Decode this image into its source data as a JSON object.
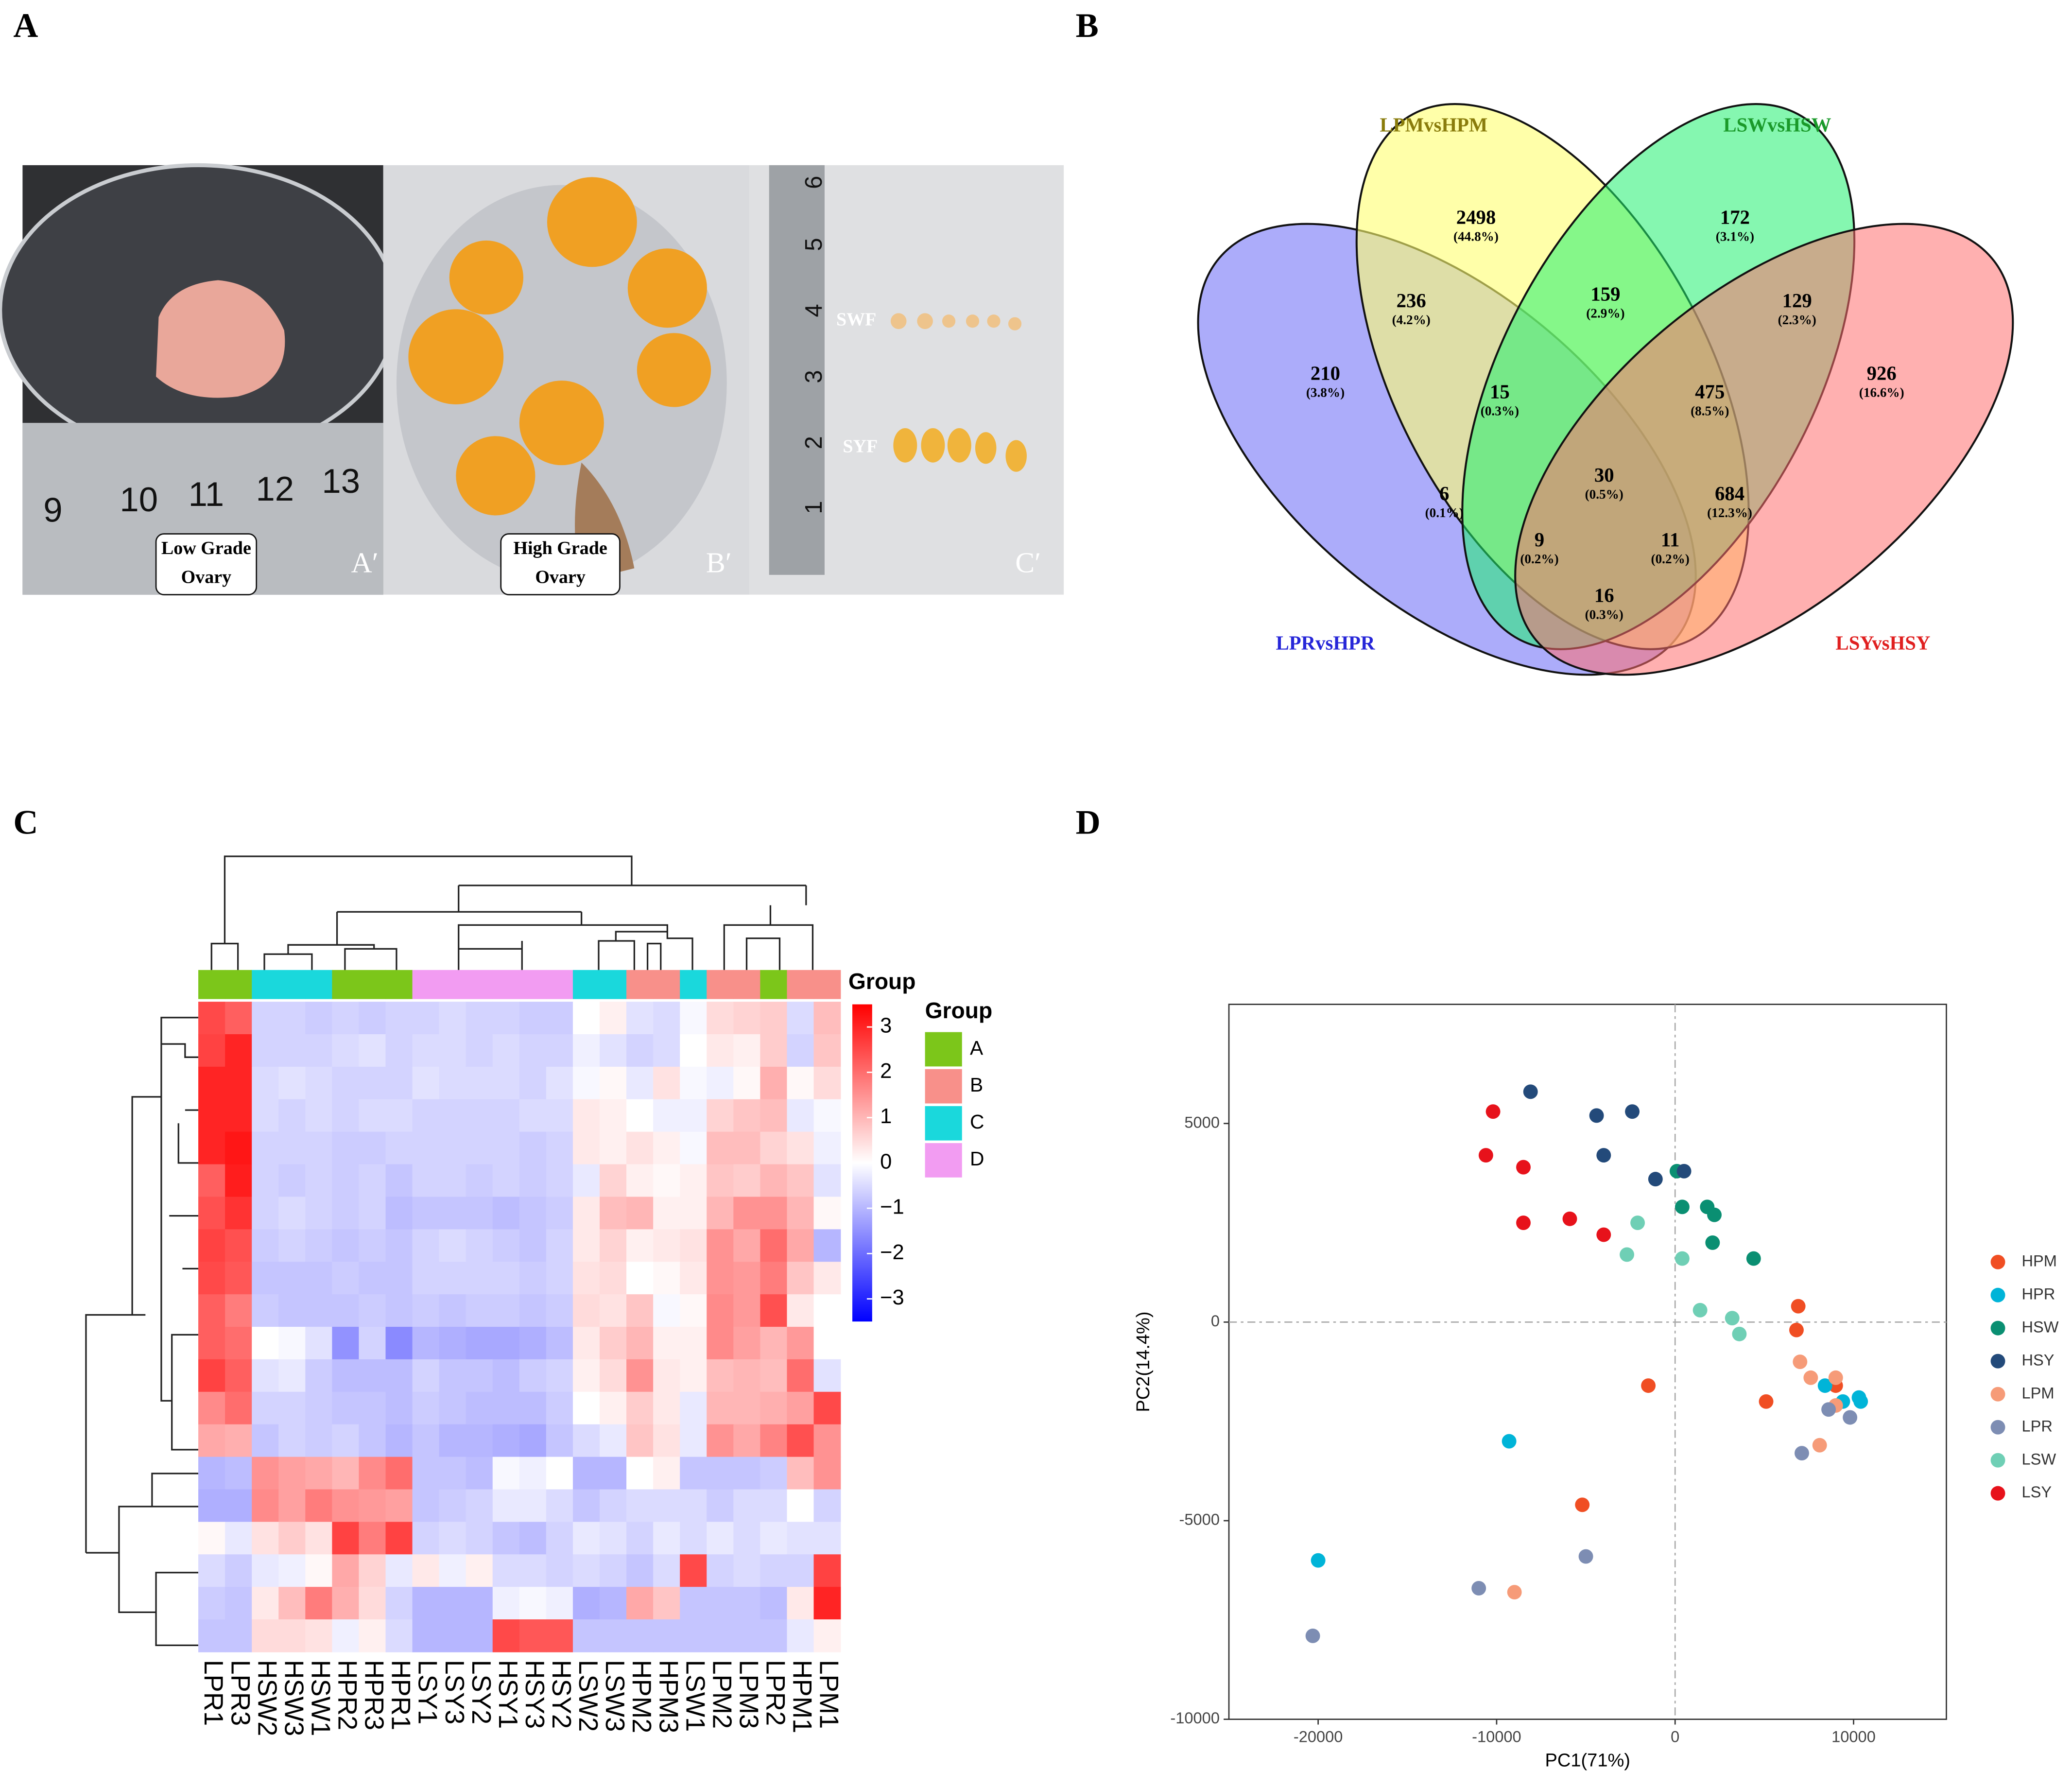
{
  "panel_labels": [
    "A",
    "B",
    "C",
    "D"
  ],
  "photos": {
    "ruler_numbers": [
      "9",
      "10",
      "11",
      "12",
      "13"
    ],
    "vertical_ruler": [
      "1",
      "2",
      "3",
      "4",
      "5",
      "6"
    ],
    "label_low": [
      "Low Grade",
      "Ovary"
    ],
    "label_high": [
      "High Grade",
      "Ovary"
    ],
    "tags": [
      "A′",
      "B′",
      "C′"
    ],
    "follicles": [
      "SWF",
      "SYF"
    ]
  },
  "chart_data": [
    {
      "type": "venn",
      "sets": [
        {
          "name": "LPMvsHPM",
          "color": "#8a7c0c"
        },
        {
          "name": "LSWvsHSW",
          "color": "#1a9a2a"
        },
        {
          "name": "LPRvsHPR",
          "color": "#2626d8"
        },
        {
          "name": "LSYvsHSY",
          "color": "#e02020"
        }
      ],
      "values": [
        2498,
        172,
        236,
        159,
        129,
        210,
        15,
        475,
        926,
        6,
        30,
        684,
        9,
        11,
        16
      ],
      "percent_labels": [
        "(44.8%)",
        "(3.1%)",
        "(4.2%)",
        "(2.9%)",
        "(2.3%)",
        "(3.8%)",
        "(0.3%)",
        "(8.5%)",
        "(16.6%)",
        "(0.1%)",
        "(0.5%)",
        "(12.3%)",
        "(0.2%)",
        "(0.2%)",
        "(0.3%)"
      ]
    },
    {
      "type": "heatmap",
      "columns": [
        "LPR1",
        "LPR3",
        "HSW2",
        "HSW3",
        "HSW1",
        "HPR2",
        "HPR3",
        "HPR1",
        "LSY1",
        "LSY3",
        "LSY2",
        "HSY1",
        "HSY3",
        "HSY2",
        "LSW2",
        "LSW3",
        "HPM2",
        "HPM3",
        "LSW1",
        "LPM2",
        "LPM3",
        "LPR2",
        "HPM1",
        "LPM1"
      ],
      "column_groups": [
        "A",
        "A",
        "C",
        "C",
        "C",
        "A",
        "A",
        "A",
        "D",
        "D",
        "D",
        "D",
        "D",
        "D",
        "C",
        "C",
        "B",
        "B",
        "C",
        "B",
        "B",
        "A",
        "B",
        "B"
      ],
      "colorbar_title": "Group",
      "legend_title": "Group",
      "group_names": [
        "A",
        "B",
        "C",
        "D"
      ],
      "group_colors": [
        "#7cc61a",
        "#f8908a",
        "#1ad8dc",
        "#f29cf2"
      ],
      "colors": [
        "#0000ff",
        "#ffffff",
        "#ff0000"
      ],
      "zlim": [
        -3.5,
        3.5
      ],
      "zticks": [
        3,
        2,
        1,
        0,
        {
          "value": -1,
          "label": "−1"
        },
        {
          "value": -2,
          "label": "−2"
        },
        {
          "value": -3,
          "label": "−3"
        }
      ],
      "values": [
        [
          2.5,
          2.2,
          -0.6,
          -0.6,
          -0.7,
          -0.6,
          -0.7,
          -0.6,
          -0.6,
          -0.5,
          -0.6,
          -0.6,
          -0.7,
          -0.7,
          0,
          0.2,
          -0.4,
          -0.5,
          -0.1,
          0.5,
          0.6,
          0.7,
          -0.5,
          0.9
        ],
        [
          2.6,
          3,
          -0.6,
          -0.6,
          -0.6,
          -0.5,
          -0.4,
          -0.6,
          -0.5,
          -0.5,
          -0.6,
          -0.5,
          -0.6,
          -0.6,
          -0.2,
          -0.4,
          -0.6,
          -0.5,
          0,
          0.3,
          0.2,
          0.7,
          -0.6,
          0.8
        ],
        [
          3,
          3,
          -0.5,
          -0.4,
          -0.5,
          -0.6,
          -0.6,
          -0.6,
          -0.4,
          -0.5,
          -0.5,
          -0.5,
          -0.6,
          -0.4,
          -0.1,
          0.1,
          -0.3,
          0.4,
          -0.1,
          -0.2,
          0.1,
          1.1,
          0.1,
          0.5
        ],
        [
          3,
          3,
          -0.5,
          -0.6,
          -0.5,
          -0.6,
          -0.5,
          -0.5,
          -0.6,
          -0.6,
          -0.6,
          -0.6,
          -0.5,
          -0.5,
          0.3,
          0.2,
          0,
          -0.2,
          -0.2,
          0.6,
          0.8,
          0.9,
          -0.3,
          -0.1
        ],
        [
          3,
          3.2,
          -0.6,
          -0.6,
          -0.6,
          -0.7,
          -0.7,
          -0.6,
          -0.6,
          -0.6,
          -0.6,
          -0.6,
          -0.7,
          -0.6,
          0.3,
          0.2,
          0.4,
          0.2,
          -0.1,
          0.9,
          0.9,
          0.6,
          0.4,
          -0.2
        ],
        [
          2.2,
          3.1,
          -0.6,
          -0.7,
          -0.6,
          -0.7,
          -0.6,
          -0.8,
          -0.6,
          -0.6,
          -0.7,
          -0.6,
          -0.7,
          -0.6,
          -0.3,
          0.6,
          0.2,
          0.1,
          0.2,
          0.8,
          0.7,
          1,
          0.8,
          -0.4
        ],
        [
          2.4,
          2.8,
          -0.6,
          -0.5,
          -0.6,
          -0.7,
          -0.6,
          -0.9,
          -0.8,
          -0.8,
          -0.8,
          -0.9,
          -0.8,
          -0.7,
          0.3,
          0.9,
          1,
          0.2,
          0.2,
          1,
          1.5,
          1.5,
          1,
          0.1
        ],
        [
          2.6,
          2.4,
          -0.7,
          -0.6,
          -0.7,
          -0.8,
          -0.7,
          -0.8,
          -0.6,
          -0.5,
          -0.6,
          -0.7,
          -0.8,
          -0.6,
          0.3,
          0.6,
          0.2,
          0.3,
          0.4,
          1.5,
          1.2,
          2,
          1.2,
          -1
        ],
        [
          2.5,
          2.3,
          -0.8,
          -0.8,
          -0.8,
          -0.7,
          -0.8,
          -0.8,
          -0.6,
          -0.6,
          -0.6,
          -0.6,
          -0.7,
          -0.6,
          0.4,
          0.5,
          0,
          0.1,
          0.3,
          1.5,
          1.4,
          1.8,
          0.8,
          0.3
        ],
        [
          2.2,
          1.8,
          -0.7,
          -0.8,
          -0.8,
          -0.8,
          -0.7,
          -0.8,
          -0.7,
          -0.8,
          -0.7,
          -0.7,
          -0.8,
          -0.7,
          0.5,
          0.4,
          0.8,
          -0.1,
          0.1,
          1.6,
          1.4,
          2.4,
          0.3,
          0
        ],
        [
          2.2,
          2,
          0,
          -0.1,
          -0.4,
          -1.5,
          -0.6,
          -1.6,
          -1,
          -1.1,
          -1.2,
          -1.2,
          -1.1,
          -0.9,
          0.3,
          0.7,
          1,
          0.2,
          0.2,
          1.6,
          1.3,
          1,
          1.4,
          0
        ],
        [
          2.6,
          2.2,
          -0.4,
          -0.3,
          -0.7,
          -0.9,
          -0.9,
          -0.9,
          -0.6,
          -0.8,
          -0.8,
          -0.9,
          -0.7,
          -0.6,
          0.2,
          0.5,
          1.5,
          0.3,
          0.2,
          0.9,
          1,
          0.9,
          2,
          -0.4
        ],
        [
          1.6,
          2,
          -0.6,
          -0.6,
          -0.7,
          -0.8,
          -0.8,
          -0.9,
          -0.7,
          -0.8,
          -0.9,
          -0.9,
          -0.9,
          -0.7,
          0,
          0.2,
          0.7,
          0.3,
          -0.3,
          1,
          1,
          1.1,
          1.3,
          2.5
        ],
        [
          1.2,
          1.1,
          -0.8,
          -0.6,
          -0.7,
          -0.6,
          -0.8,
          -1,
          -0.8,
          -1,
          -1,
          -1.1,
          -1.2,
          -0.8,
          -0.5,
          -0.3,
          0.8,
          0.4,
          -0.3,
          1.5,
          1.2,
          1.7,
          2.4,
          1.5
        ],
        [
          -1,
          -0.9,
          1.5,
          1.3,
          1.2,
          1,
          1.6,
          2,
          -0.8,
          -0.8,
          -0.9,
          -0.1,
          -0.2,
          0,
          -1,
          -1,
          0,
          0.2,
          -0.8,
          -0.8,
          -0.8,
          -0.7,
          0.9,
          1.5
        ],
        [
          -1.1,
          -1.1,
          1.6,
          1.3,
          1.8,
          1.5,
          1.4,
          1.3,
          -0.8,
          -0.7,
          -0.6,
          -0.3,
          -0.3,
          -0.5,
          -0.8,
          -0.6,
          -0.5,
          -0.5,
          -0.5,
          -0.7,
          -0.5,
          -0.5,
          0,
          -0.6
        ],
        [
          0.1,
          -0.3,
          0.4,
          0.7,
          0.4,
          2.6,
          1.8,
          2.6,
          -0.6,
          -0.5,
          -0.6,
          -0.8,
          -0.9,
          -0.6,
          -0.3,
          -0.4,
          -0.6,
          -0.3,
          -0.5,
          -0.3,
          -0.5,
          -0.3,
          -0.4,
          -0.4
        ],
        [
          -0.5,
          -0.7,
          -0.3,
          -0.2,
          0.1,
          1.2,
          0.6,
          -0.3,
          0.3,
          -0.2,
          0.2,
          -0.5,
          -0.5,
          -0.6,
          -0.5,
          -0.6,
          -0.8,
          -0.5,
          2.5,
          -0.6,
          -0.5,
          -0.6,
          -0.6,
          2.6
        ],
        [
          -0.7,
          -0.8,
          0.3,
          0.9,
          1.8,
          1.1,
          0.5,
          -0.6,
          -1,
          -1,
          -1,
          -0.2,
          -0.1,
          -0.2,
          -1.1,
          -1,
          1.2,
          0.8,
          -0.8,
          -0.8,
          -0.8,
          -0.9,
          0.3,
          3
        ],
        [
          -0.8,
          -0.8,
          0.5,
          0.5,
          0.4,
          -0.2,
          0.2,
          -0.5,
          -1,
          -1,
          -1,
          2.5,
          2.3,
          2.3,
          -0.8,
          -0.8,
          -0.8,
          -0.8,
          -0.8,
          -0.8,
          -0.8,
          -0.8,
          -0.3,
          0.2
        ]
      ]
    },
    {
      "type": "scatter",
      "x_label": "PC1(71%)",
      "y_label": "PC2(14.4%)",
      "xlim": [
        -25000,
        15200
      ],
      "ylim": [
        -10000,
        8000
      ],
      "xticks": [
        -20000,
        -10000,
        0,
        10000
      ],
      "yticks": [
        -10000,
        -5000,
        0,
        5000
      ],
      "ref_lines": {
        "x": 0,
        "y": 0
      },
      "series": [
        {
          "name": "HPM",
          "color": "#f04e23",
          "x": [
            5100,
            6900,
            6800,
            -1500,
            -5200,
            9000
          ],
          "values": [
            -2000,
            400,
            -200,
            -1600,
            -4600,
            -1600
          ]
        },
        {
          "name": "HPR",
          "color": "#00b4d8",
          "x": [
            -20000,
            -9300,
            8400,
            9400,
            10300,
            10400
          ],
          "values": [
            -6000,
            -3000,
            -1600,
            -2000,
            -1900,
            -2000
          ]
        },
        {
          "name": "HSW",
          "color": "#0a8f72",
          "x": [
            100,
            400,
            1800,
            2200,
            2100,
            4400
          ],
          "values": [
            3800,
            2900,
            2900,
            2700,
            2000,
            1600
          ]
        },
        {
          "name": "HSY",
          "color": "#234a7a",
          "x": [
            -8100,
            -4400,
            -2400,
            -4000,
            -1100,
            500
          ],
          "values": [
            5800,
            5200,
            5300,
            4200,
            3600,
            3800
          ]
        },
        {
          "name": "LPM",
          "color": "#f69b78",
          "x": [
            7000,
            7600,
            9000,
            9000,
            8100,
            -9000
          ],
          "values": [
            -1000,
            -1400,
            -1400,
            -2100,
            -3100,
            -6800
          ]
        },
        {
          "name": "LPR",
          "color": "#7d8db3",
          "x": [
            -20300,
            -11000,
            -5000,
            7100,
            8600,
            9800
          ],
          "values": [
            -7900,
            -6700,
            -5900,
            -3300,
            -2200,
            -2400
          ]
        },
        {
          "name": "LSW",
          "color": "#6fcfb5",
          "x": [
            -2100,
            -2700,
            400,
            1400,
            3200,
            3600
          ],
          "values": [
            2500,
            1700,
            1600,
            300,
            100,
            -300
          ]
        },
        {
          "name": "LSY",
          "color": "#e7121b",
          "x": [
            -10200,
            -10600,
            -8500,
            -8500,
            -5900,
            -4000
          ],
          "values": [
            5300,
            4200,
            3900,
            2500,
            2600,
            2200
          ]
        }
      ]
    }
  ]
}
